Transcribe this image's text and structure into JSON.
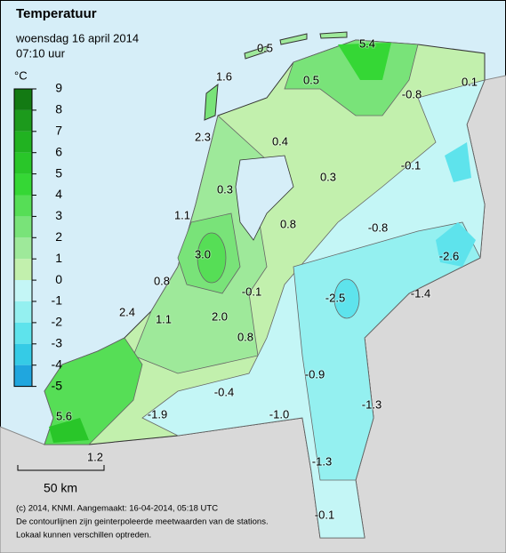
{
  "title": "Temperatuur",
  "date": "woensdag 16 april 2014",
  "time": "07:10 uur",
  "legend": {
    "unit": "°C",
    "ticks": [
      9,
      8,
      7,
      6,
      5,
      4,
      3,
      2,
      1,
      0,
      -1,
      -2,
      -3,
      -4,
      -5
    ],
    "colors": [
      "#137a13",
      "#1c9a1c",
      "#21b221",
      "#29c629",
      "#35d735",
      "#56de56",
      "#79e379",
      "#9ee99a",
      "#c2f0ad",
      "#c4f6f6",
      "#94f0f0",
      "#5ee3ec",
      "#35cbe6",
      "#20a6de"
    ]
  },
  "stations": [
    "0.5",
    "5.4",
    "1.6",
    "0.5",
    "-0.8",
    "0.1",
    "2.3",
    "0.4",
    "-0.1",
    "0.3",
    "0.3",
    "1.1",
    "0.8",
    "-0.8",
    "-2.6",
    "3.0",
    "0.8",
    "-0.1",
    "-2.5",
    "-1.4",
    "2.4",
    "1.1",
    "2.0",
    "0.8",
    "-0.9",
    "-0.4",
    "-1.3",
    "-1.0",
    "-1.9",
    "5.6",
    "1.2",
    "-1.3",
    "-0.1"
  ],
  "scale": "50 km",
  "footer": [
    "(c) 2014, KNMI. Aangemaakt: 16-04-2014, 05:18 UTC",
    "De contourlijnen zijn geinterpoleerde meetwaarden van de stations.",
    "Lokaal kunnen verschillen optreden."
  ]
}
